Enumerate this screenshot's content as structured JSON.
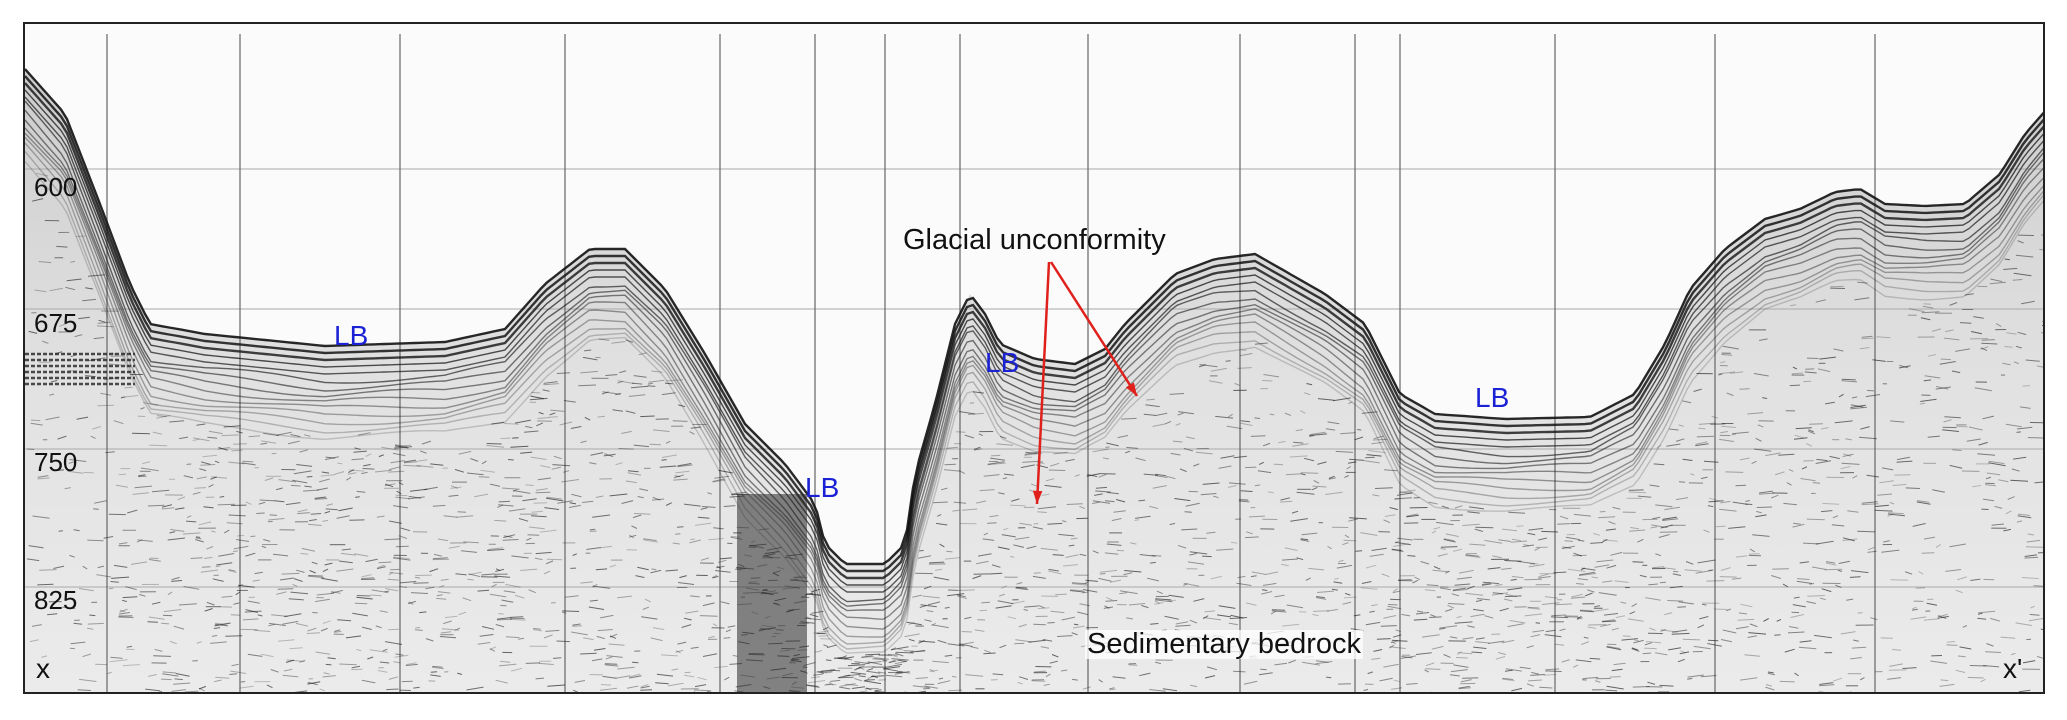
{
  "axis": {
    "y_ticks": [
      "600",
      "675",
      "750",
      "825"
    ]
  },
  "labels": {
    "lb": [
      "LB",
      "LB",
      "LB",
      "LB"
    ],
    "glacial_unconformity": "Glacial unconformity",
    "sedimentary_bedrock": "Sedimentary bedrock",
    "x_start": "x",
    "x_end": "x'"
  },
  "colors": {
    "label_blue": "#1b22d6",
    "arrow_red": "#e0201b",
    "ink": "#111111"
  }
}
